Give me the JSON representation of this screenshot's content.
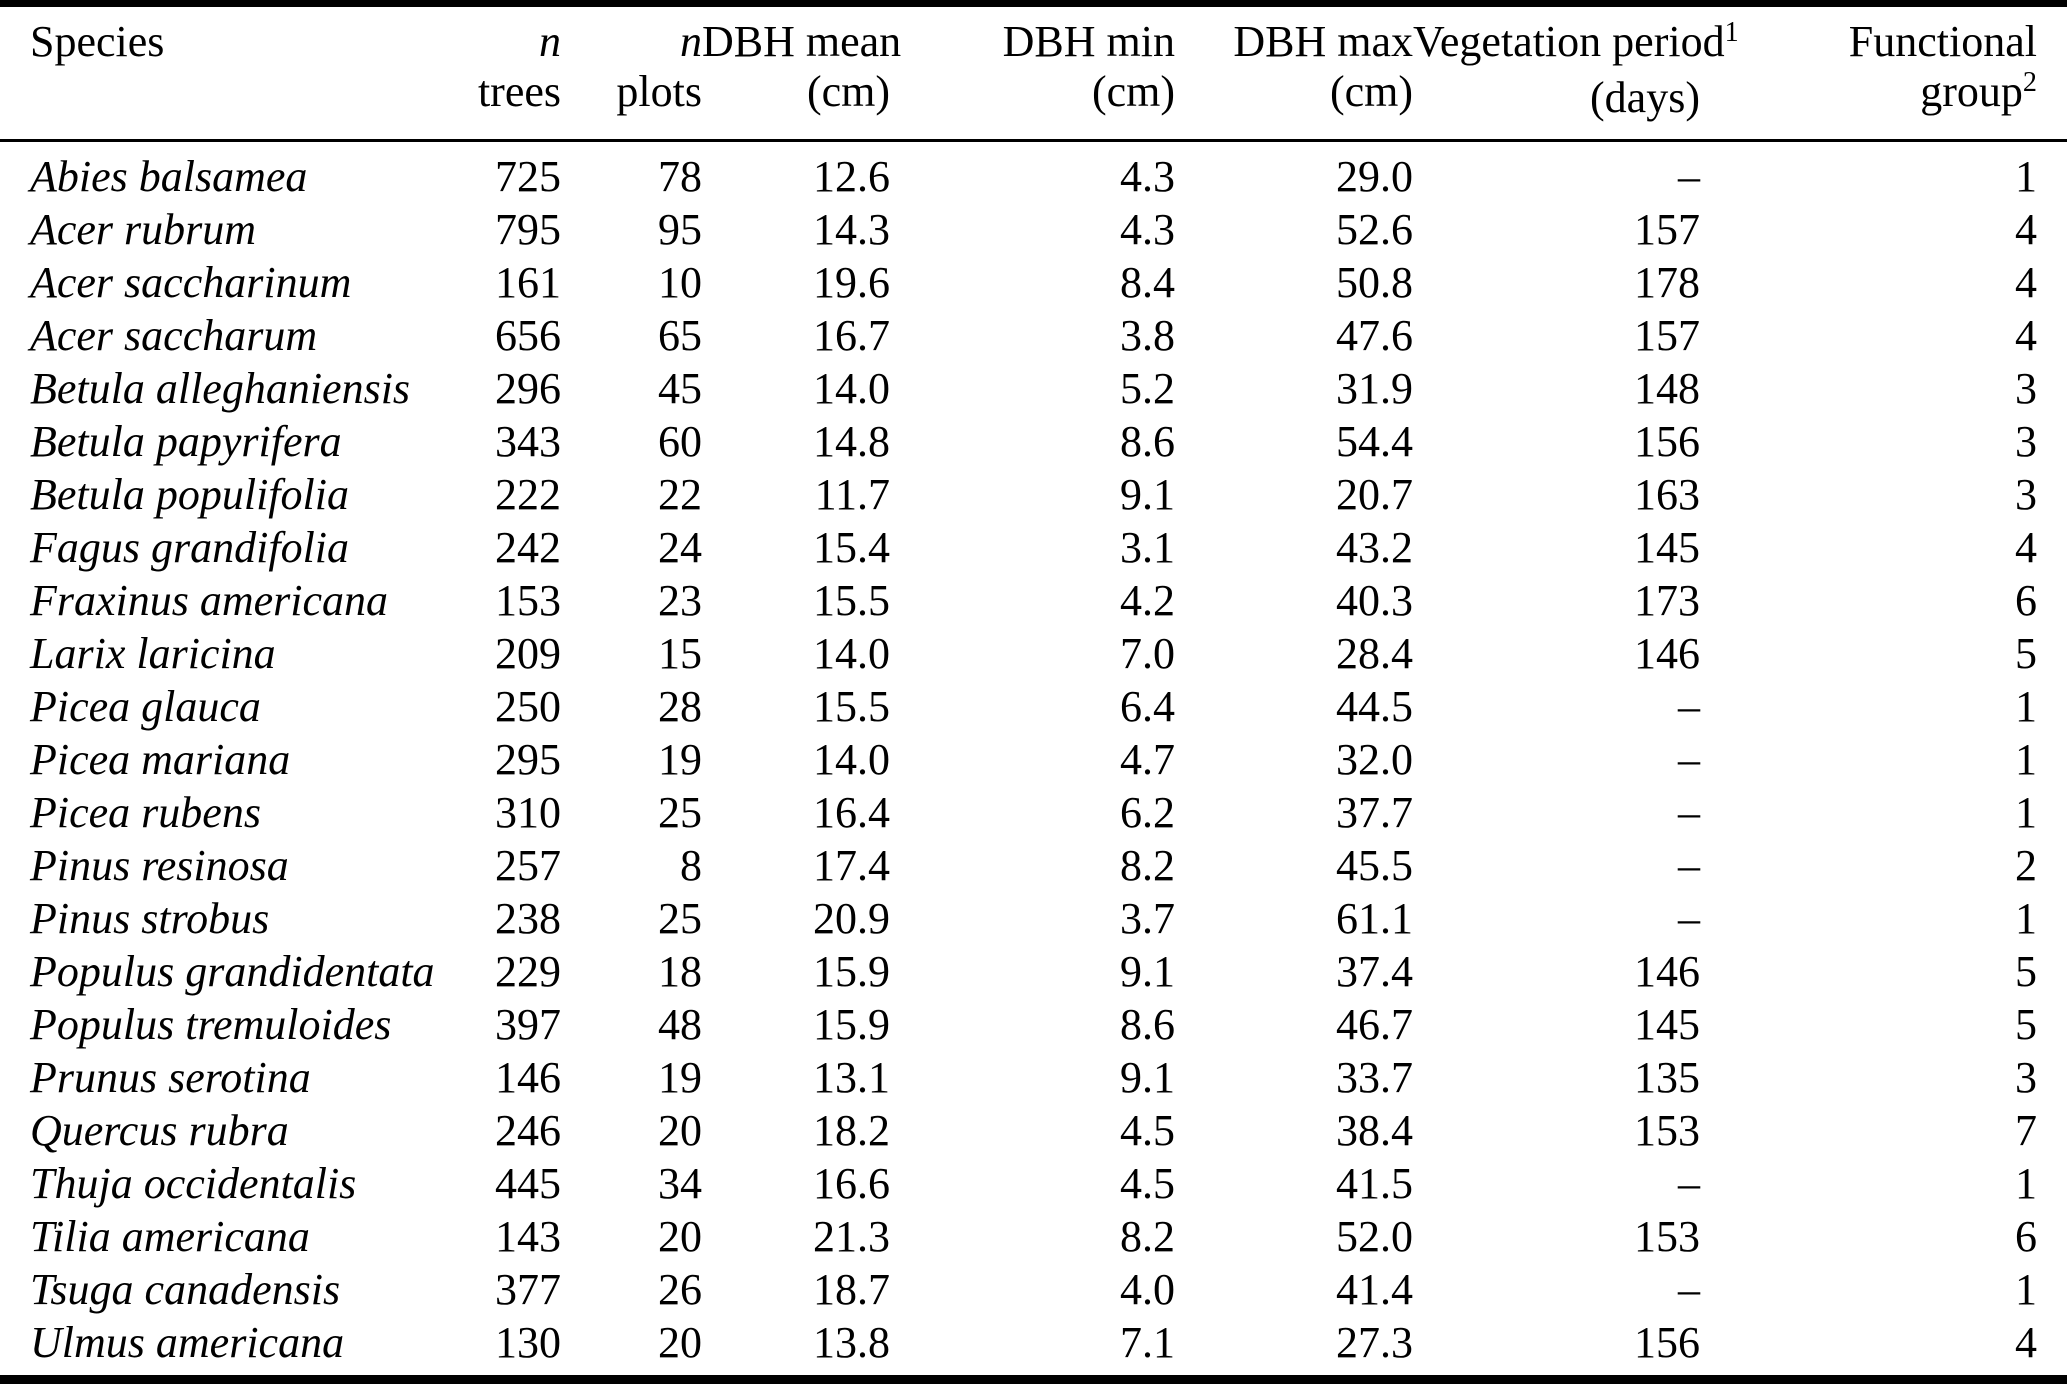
{
  "table": {
    "background_color": "#ffffff",
    "text_color": "#000000",
    "rule_color": "#000000",
    "missing_marker": "–",
    "footnote_markers": [
      "1",
      "2"
    ],
    "columns": [
      {
        "id": "species",
        "line1": "Species",
        "line2": "",
        "align": "left",
        "line1_italic": false
      },
      {
        "id": "n-trees",
        "line1": "n",
        "line2": "trees",
        "align": "right",
        "line1_italic": true
      },
      {
        "id": "n-plots",
        "line1": "n",
        "line2": "plots",
        "align": "right",
        "line1_italic": true
      },
      {
        "id": "dbh-mean",
        "line1": "DBH mean",
        "line2": "(cm)",
        "align": "right",
        "line1_italic": false
      },
      {
        "id": "dbh-min",
        "line1": "DBH min",
        "line2": "(cm)",
        "align": "right",
        "line1_italic": false
      },
      {
        "id": "dbh-max",
        "line1": "DBH max",
        "line2": "(cm)",
        "align": "right",
        "line1_italic": false
      },
      {
        "id": "veg-period",
        "line1": "Vegetation period",
        "line1_sup": "1",
        "line2": "(days)",
        "align": "right",
        "line1_italic": false
      },
      {
        "id": "func-group",
        "line1": "Functional",
        "line2": "group",
        "line2_sup": "2",
        "align": "right",
        "line1_italic": false
      }
    ],
    "rows": [
      [
        "Abies balsamea",
        "725",
        "78",
        "12.6",
        "4.3",
        "29.0",
        "–",
        "1"
      ],
      [
        "Acer rubrum",
        "795",
        "95",
        "14.3",
        "4.3",
        "52.6",
        "157",
        "4"
      ],
      [
        "Acer saccharinum",
        "161",
        "10",
        "19.6",
        "8.4",
        "50.8",
        "178",
        "4"
      ],
      [
        "Acer saccharum",
        "656",
        "65",
        "16.7",
        "3.8",
        "47.6",
        "157",
        "4"
      ],
      [
        "Betula alleghaniensis",
        "296",
        "45",
        "14.0",
        "5.2",
        "31.9",
        "148",
        "3"
      ],
      [
        "Betula papyrifera",
        "343",
        "60",
        "14.8",
        "8.6",
        "54.4",
        "156",
        "3"
      ],
      [
        "Betula populifolia",
        "222",
        "22",
        "11.7",
        "9.1",
        "20.7",
        "163",
        "3"
      ],
      [
        "Fagus grandifolia",
        "242",
        "24",
        "15.4",
        "3.1",
        "43.2",
        "145",
        "4"
      ],
      [
        "Fraxinus americana",
        "153",
        "23",
        "15.5",
        "4.2",
        "40.3",
        "173",
        "6"
      ],
      [
        "Larix laricina",
        "209",
        "15",
        "14.0",
        "7.0",
        "28.4",
        "146",
        "5"
      ],
      [
        "Picea glauca",
        "250",
        "28",
        "15.5",
        "6.4",
        "44.5",
        "–",
        "1"
      ],
      [
        "Picea mariana",
        "295",
        "19",
        "14.0",
        "4.7",
        "32.0",
        "–",
        "1"
      ],
      [
        "Picea rubens",
        "310",
        "25",
        "16.4",
        "6.2",
        "37.7",
        "–",
        "1"
      ],
      [
        "Pinus resinosa",
        "257",
        "8",
        "17.4",
        "8.2",
        "45.5",
        "–",
        "2"
      ],
      [
        "Pinus strobus",
        "238",
        "25",
        "20.9",
        "3.7",
        "61.1",
        "–",
        "1"
      ],
      [
        "Populus grandidentata",
        "229",
        "18",
        "15.9",
        "9.1",
        "37.4",
        "146",
        "5"
      ],
      [
        "Populus tremuloides",
        "397",
        "48",
        "15.9",
        "8.6",
        "46.7",
        "145",
        "5"
      ],
      [
        "Prunus serotina",
        "146",
        "19",
        "13.1",
        "9.1",
        "33.7",
        "135",
        "3"
      ],
      [
        "Quercus rubra",
        "246",
        "20",
        "18.2",
        "4.5",
        "38.4",
        "153",
        "7"
      ],
      [
        "Thuja occidentalis",
        "445",
        "34",
        "16.6",
        "4.5",
        "41.5",
        "–",
        "1"
      ],
      [
        "Tilia americana",
        "143",
        "20",
        "21.3",
        "8.2",
        "52.0",
        "153",
        "6"
      ],
      [
        "Tsuga canadensis",
        "377",
        "26",
        "18.7",
        "4.0",
        "41.4",
        "–",
        "1"
      ],
      [
        "Ulmus americana",
        "130",
        "20",
        "13.8",
        "7.1",
        "27.3",
        "156",
        "4"
      ]
    ]
  }
}
